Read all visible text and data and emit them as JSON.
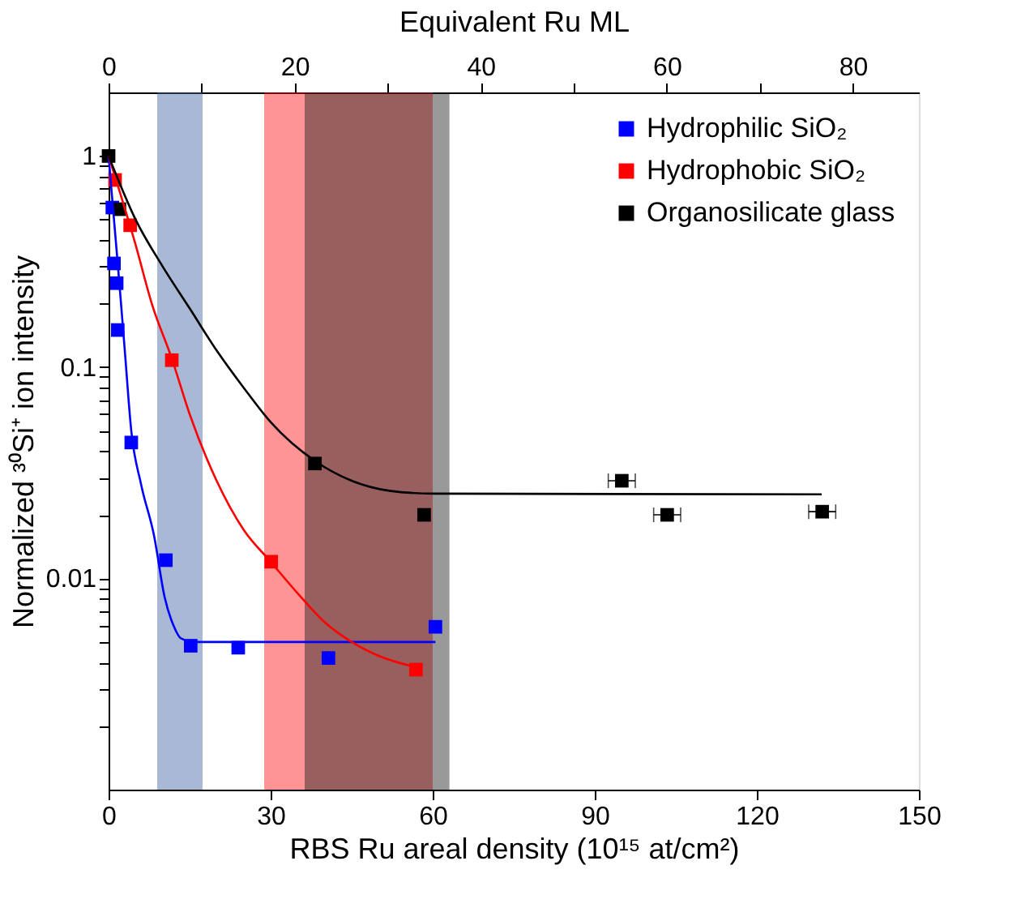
{
  "chart_data": {
    "type": "scatter",
    "xlabel": "RBS Ru areal density (10¹⁵ at/cm²)",
    "ylabel": "Normalized ³⁰Si⁺ ion intensity",
    "x2label": "Equivalent Ru ML",
    "xlim": [
      0,
      150
    ],
    "xticks": [
      0,
      30,
      60,
      90,
      120,
      150
    ],
    "x2lim": [
      0,
      87.1
    ],
    "x2ticks": [
      0,
      {
        "value": 10,
        "label": null
      },
      20,
      {
        "value": 30,
        "label": null
      },
      40,
      {
        "value": 50,
        "label": null
      },
      60,
      {
        "value": 70,
        "label": null
      },
      80
    ],
    "ylim": [
      0.001,
      2
    ],
    "yticks": [
      {
        "value": 0.002,
        "label": null
      },
      {
        "value": 0.003,
        "label": null
      },
      {
        "value": 0.004,
        "label": null
      },
      {
        "value": 0.005,
        "label": null
      },
      {
        "value": 0.006,
        "label": null
      },
      {
        "value": 0.007,
        "label": null
      },
      {
        "value": 0.008,
        "label": null
      },
      {
        "value": 0.009,
        "label": null
      },
      0.01,
      {
        "value": 0.02,
        "label": null
      },
      {
        "value": 0.03,
        "label": null
      },
      {
        "value": 0.04,
        "label": null
      },
      {
        "value": 0.05,
        "label": null
      },
      {
        "value": 0.06,
        "label": null
      },
      {
        "value": 0.07,
        "label": null
      },
      {
        "value": 0.08,
        "label": null
      },
      {
        "value": 0.09,
        "label": null
      },
      0.1,
      {
        "value": 0.2,
        "label": null
      },
      {
        "value": 0.3,
        "label": null
      },
      {
        "value": 0.4,
        "label": null
      },
      {
        "value": 0.5,
        "label": null
      },
      {
        "value": 0.6,
        "label": null
      },
      {
        "value": 0.7,
        "label": null
      },
      {
        "value": 0.8,
        "label": null
      },
      {
        "value": 0.9,
        "label": null
      },
      1
    ],
    "log": "y",
    "grid": false,
    "legend": "top right",
    "series": [
      {
        "name": "Hydrophilic SiO₂",
        "color": "#0000ff",
        "marker": "square",
        "x": [
          0.7,
          1.0,
          1.5,
          1.7,
          4.2,
          10.6,
          15.2,
          24.0,
          40.7,
          60.5
        ],
        "values": [
          0.57,
          0.31,
          0.25,
          0.15,
          0.044,
          0.0122,
          0.0048,
          0.0047,
          0.0042,
          0.0059
        ]
      },
      {
        "name": "Hydrophobic SiO₂",
        "color": "#ff0000",
        "marker": "square",
        "x": [
          1.2,
          4.0,
          11.7,
          30.1,
          56.9
        ],
        "values": [
          0.77,
          0.47,
          0.108,
          0.012,
          0.0037
        ]
      },
      {
        "name": "Organosilicate glass",
        "color": "#000000",
        "marker": "square",
        "x": [
          0,
          2.0,
          38.2,
          58.4,
          95.0,
          103.4,
          132.1
        ],
        "values": [
          1,
          0.56,
          0.035,
          0.02,
          0.029,
          0.02,
          0.0207
        ],
        "xerrors": [
          null,
          null,
          null,
          null,
          2.5,
          2.5,
          2.5
        ]
      },
      {
        "color": "#0000ff",
        "type": "line",
        "x": [
          0,
          1,
          2,
          3,
          4.2,
          6,
          8.4,
          10.4,
          12,
          13.4,
          16,
          60.5
        ],
        "values": [
          1,
          0.5,
          0.25,
          0.12,
          0.05,
          0.028,
          0.016,
          0.0081,
          0.006,
          0.0052,
          0.005,
          0.005
        ]
      },
      {
        "color": "#ff0000",
        "type": "line",
        "x": [
          0,
          5,
          8,
          11.7,
          15,
          20,
          25,
          30,
          35,
          40,
          45,
          50,
          56.9
        ],
        "values": [
          1,
          0.38,
          0.2,
          0.11,
          0.06,
          0.029,
          0.017,
          0.012,
          0.0085,
          0.0062,
          0.005,
          0.0043,
          0.0038
        ]
      },
      {
        "color": "#000000",
        "type": "line",
        "x": [
          0,
          5,
          10,
          15,
          20,
          25,
          30,
          38.2,
          45,
          52,
          60,
          132
        ],
        "values": [
          1,
          0.5,
          0.3,
          0.19,
          0.12,
          0.08,
          0.055,
          0.036,
          0.029,
          0.026,
          0.0252,
          0.025
        ]
      }
    ],
    "bands": [
      {
        "axis": "x",
        "from": 9.0,
        "to": 17.4,
        "color": "#40619f"
      },
      {
        "axis": "x",
        "from": 28.8,
        "to": 60.0,
        "color": "#ff1111"
      },
      {
        "axis": "x",
        "from": 36.3,
        "to": 63.1,
        "color": "#1c1c1c"
      }
    ]
  }
}
